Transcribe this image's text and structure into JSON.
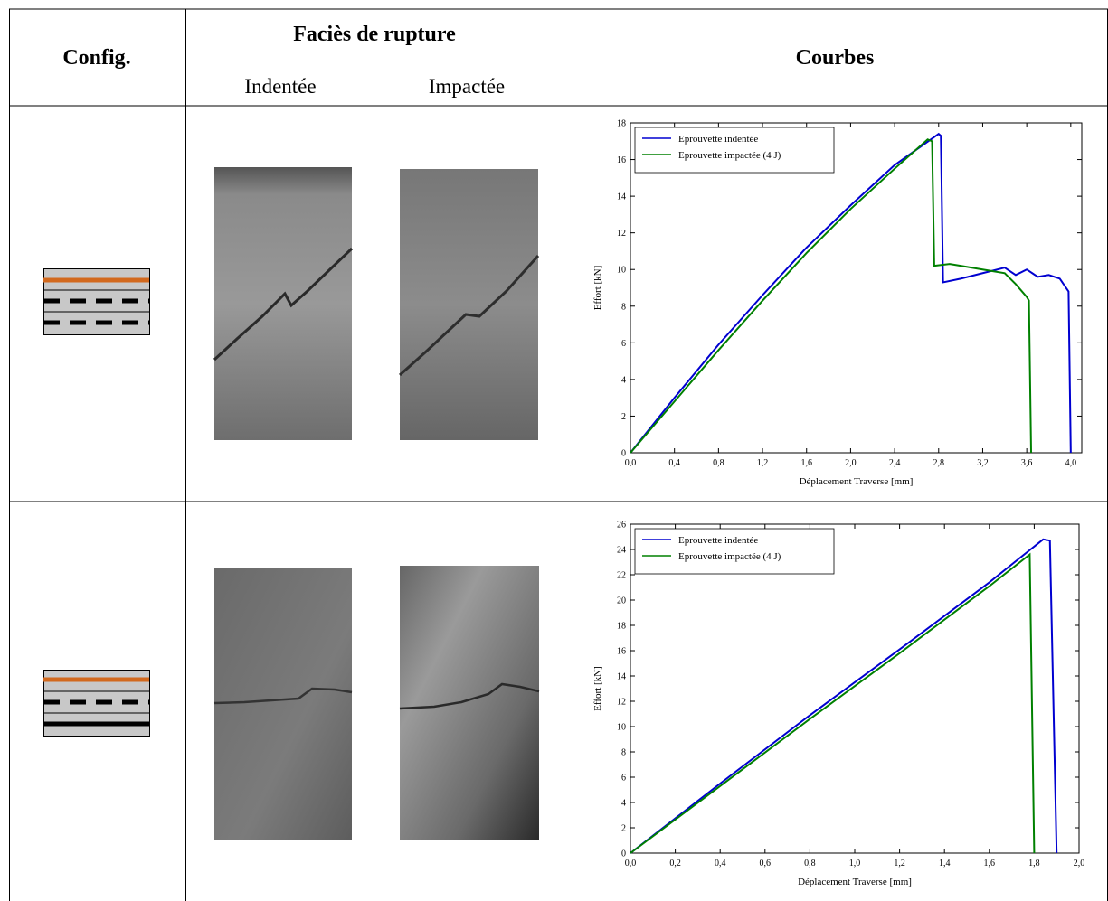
{
  "table": {
    "header": {
      "config": "Config.",
      "facies": "Faciès de rupture",
      "indentee": "Indentée",
      "impactee": "Impactée",
      "courbes": "Courbes"
    }
  },
  "chart_data": [
    {
      "type": "line",
      "xlabel": "Déplacement Traverse [mm]",
      "ylabel": "Effort [kN]",
      "legend": "upper left",
      "xlim": [
        0,
        4.1
      ],
      "ylim": [
        0,
        18
      ],
      "xticks": [
        {
          "value": 0,
          "label": "0,0"
        },
        {
          "value": 0.4,
          "label": "0,4"
        },
        {
          "value": 0.8,
          "label": "0,8"
        },
        {
          "value": 1.2,
          "label": "1,2"
        },
        {
          "value": 1.6,
          "label": "1,6"
        },
        {
          "value": 2.0,
          "label": "2,0"
        },
        {
          "value": 2.4,
          "label": "2,4"
        },
        {
          "value": 2.8,
          "label": "2,8"
        },
        {
          "value": 3.2,
          "label": "3,2"
        },
        {
          "value": 3.6,
          "label": "3,6"
        },
        {
          "value": 4.0,
          "label": "4,0"
        }
      ],
      "yticks": [
        0,
        2,
        4,
        6,
        8,
        10,
        12,
        14,
        16,
        18
      ],
      "series": [
        {
          "name": "Eprouvette indentée",
          "color": "#0000d0",
          "x": [
            0,
            0.4,
            0.8,
            1.2,
            1.6,
            2.0,
            2.4,
            2.8,
            2.82,
            2.84,
            3.0,
            3.2,
            3.4,
            3.5,
            3.6,
            3.7,
            3.8,
            3.9,
            3.98,
            4.0
          ],
          "values": [
            0,
            3.0,
            5.9,
            8.6,
            11.2,
            13.5,
            15.7,
            17.4,
            17.3,
            9.3,
            9.5,
            9.8,
            10.1,
            9.7,
            10.0,
            9.6,
            9.7,
            9.5,
            8.8,
            0
          ]
        },
        {
          "name": "Eprouvette impactée (4 J)",
          "color": "#008000",
          "x": [
            0,
            0.4,
            0.8,
            1.2,
            1.6,
            2.0,
            2.4,
            2.7,
            2.74,
            2.76,
            2.9,
            3.0,
            3.2,
            3.4,
            3.5,
            3.6,
            3.62,
            3.64
          ],
          "values": [
            0,
            2.8,
            5.6,
            8.3,
            10.9,
            13.3,
            15.5,
            17.1,
            17.0,
            10.2,
            10.3,
            10.2,
            10.0,
            9.8,
            9.2,
            8.5,
            8.3,
            0
          ]
        }
      ]
    },
    {
      "type": "line",
      "xlabel": "Déplacement Traverse [mm]",
      "ylabel": "Effort [kN]",
      "legend": "upper left",
      "xlim": [
        0,
        2.0
      ],
      "ylim": [
        0,
        26
      ],
      "xticks": [
        {
          "value": 0,
          "label": "0,0"
        },
        {
          "value": 0.2,
          "label": "0,2"
        },
        {
          "value": 0.4,
          "label": "0,4"
        },
        {
          "value": 0.6,
          "label": "0,6"
        },
        {
          "value": 0.8,
          "label": "0,8"
        },
        {
          "value": 1.0,
          "label": "1,0"
        },
        {
          "value": 1.2,
          "label": "1,2"
        },
        {
          "value": 1.4,
          "label": "1,4"
        },
        {
          "value": 1.6,
          "label": "1,6"
        },
        {
          "value": 1.8,
          "label": "1,8"
        },
        {
          "value": 2.0,
          "label": "2,0"
        }
      ],
      "yticks": [
        0,
        2,
        4,
        6,
        8,
        10,
        12,
        14,
        16,
        18,
        20,
        22,
        24,
        26
      ],
      "series": [
        {
          "name": "Eprouvette indentée",
          "color": "#0000d0",
          "x": [
            0,
            0.4,
            0.8,
            1.2,
            1.6,
            1.84,
            1.87,
            1.9
          ],
          "values": [
            0,
            5.5,
            10.9,
            16.1,
            21.4,
            24.8,
            24.7,
            0
          ]
        },
        {
          "name": "Eprouvette impactée (4 J)",
          "color": "#008000",
          "x": [
            0,
            0.4,
            0.8,
            1.2,
            1.6,
            1.78,
            1.8
          ],
          "values": [
            0,
            5.3,
            10.6,
            15.8,
            21.1,
            23.6,
            0
          ]
        }
      ]
    }
  ]
}
